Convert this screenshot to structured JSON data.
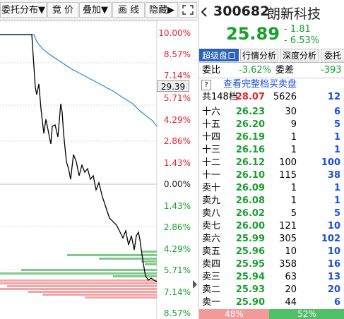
{
  "toolbar": {
    "order_dist_label": "委托分布▼",
    "auction_label": "竟  价",
    "overlay_label": "叠加▼",
    "draw_line_label": "画  线",
    "hide_label": "隐藏▶",
    "expand_icon": "fullscreen-icon"
  },
  "chart": {
    "price_marker": "29.39",
    "y_labels_top": [
      "10.00%",
      "8.57%",
      "7.14%",
      "5.71%",
      "4.29%",
      "2.86%",
      "1.43%"
    ],
    "y_label_zero": "0.00%",
    "y_labels_bottom": [
      "1.43%",
      "2.86%",
      "4.29%",
      "5.71%",
      "7.14%",
      "8.57%"
    ],
    "colors": {
      "up": "#e8222b",
      "down": "#16a02d",
      "zero": "#222222",
      "price_line": "#000000",
      "avg_line": "#1f8fd6",
      "grid": "#d9d9d9"
    }
  },
  "quote": {
    "arrow_icon": "left-arrow-icon",
    "code": "300682",
    "name": "朗新科技",
    "price": "25.89",
    "change": "- 1.81",
    "change_pct": "- 6.53%"
  },
  "tabs": [
    {
      "label": "超级盘口",
      "active": true
    },
    {
      "label": "行情分析",
      "active": false
    },
    {
      "label": "深度分析",
      "active": false
    },
    {
      "label": "委托",
      "active": false
    }
  ],
  "ratio": {
    "ratio_label": "委比",
    "ratio_value": "-3.62%",
    "diff_label": "委差",
    "diff_value": "-393"
  },
  "full_book": {
    "help_icon": "?",
    "link_text": "查看完整档买卖盘"
  },
  "summary": {
    "label": "共148档",
    "price": "28.07",
    "volume": "5626",
    "count": "12"
  },
  "asks": [
    {
      "label": "十六",
      "price": "26.23",
      "volume": "30",
      "count": "6"
    },
    {
      "label": "十五",
      "price": "26.20",
      "volume": "9",
      "count": "5"
    },
    {
      "label": "十四",
      "price": "26.19",
      "volume": "1",
      "count": "1"
    },
    {
      "label": "十三",
      "price": "26.16",
      "volume": "1",
      "count": "1"
    },
    {
      "label": "十二",
      "price": "26.12",
      "volume": "100",
      "count": "100"
    },
    {
      "label": "十一",
      "price": "26.10",
      "volume": "115",
      "count": "38"
    },
    {
      "label": "卖十",
      "price": "26.09",
      "volume": "1",
      "count": "1"
    },
    {
      "label": "卖九",
      "price": "26.08",
      "volume": "1",
      "count": "1"
    },
    {
      "label": "卖八",
      "price": "26.02",
      "volume": "5",
      "count": "5"
    },
    {
      "label": "卖七",
      "price": "26.00",
      "volume": "121",
      "count": "10"
    },
    {
      "label": "卖六",
      "price": "25.99",
      "volume": "305",
      "count": "102"
    },
    {
      "label": "卖五",
      "price": "25.96",
      "volume": "10",
      "count": "10"
    },
    {
      "label": "卖四",
      "price": "25.95",
      "volume": "358",
      "count": "16"
    },
    {
      "label": "卖三",
      "price": "25.94",
      "volume": "63",
      "count": "13"
    },
    {
      "label": "卖二",
      "price": "25.93",
      "volume": "20",
      "count": "20"
    },
    {
      "label": "卖一",
      "price": "25.90",
      "volume": "44",
      "count": "6"
    }
  ],
  "balance": {
    "sell_pct": "48%",
    "buy_pct": "52%",
    "sell_fraction": 0.48
  }
}
